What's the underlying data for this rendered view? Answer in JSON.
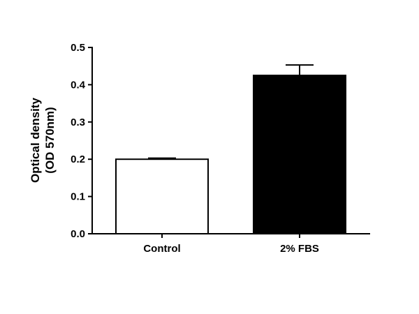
{
  "chart_data": {
    "type": "bar",
    "title": "",
    "xlabel": "",
    "ylabel_lines": [
      "Optical density",
      "(OD 570nm)"
    ],
    "categories": [
      "Control",
      "2% FBS"
    ],
    "values": [
      0.2,
      0.425
    ],
    "errors": [
      0.003,
      0.028
    ],
    "bar_fills": [
      "#ffffff",
      "#000000"
    ],
    "ylim": [
      0,
      0.5
    ],
    "yticks": [
      "0.0",
      "0.1",
      "0.2",
      "0.3",
      "0.4",
      "0.5"
    ],
    "grid": false,
    "legend": "none"
  }
}
